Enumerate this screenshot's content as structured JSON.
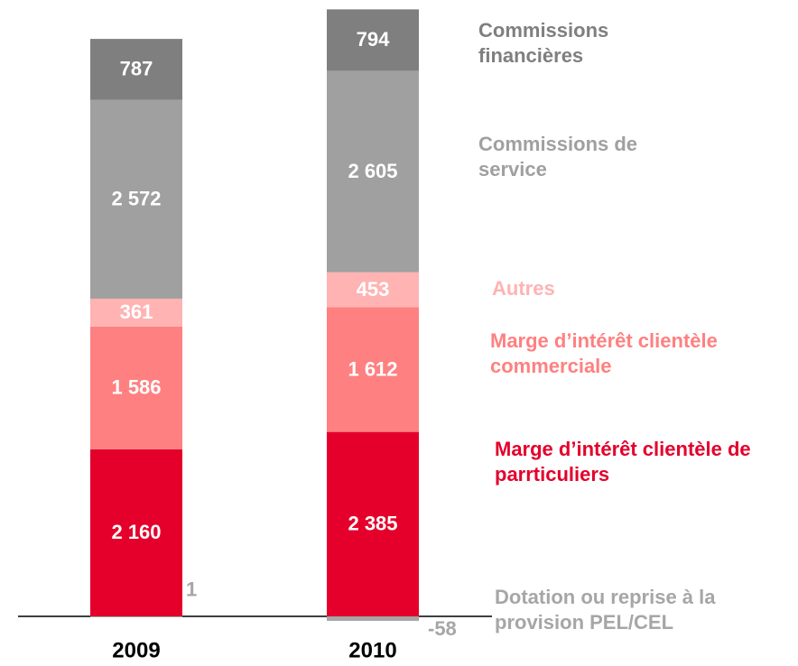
{
  "chart_data": {
    "type": "stacked_bar",
    "categories": [
      "2009",
      "2010"
    ],
    "ylim": [
      -630,
      7970
    ],
    "series": [
      {
        "name": "Dotation ou reprise à la provision PEL/CEL",
        "color": "#a6a6a6",
        "values": [
          1,
          -58
        ]
      },
      {
        "name": "Marge d’intérêt clientèle de parrticuliers",
        "color": "#e4002b",
        "values": [
          2160,
          2385
        ],
        "value_labels": [
          "2 160",
          "2 385"
        ]
      },
      {
        "name": "Marge d’intérêt clientèle commerciale",
        "color": "#ff8080",
        "values": [
          1586,
          1612
        ],
        "value_labels": [
          "1 586",
          "1 612"
        ]
      },
      {
        "name": "Autres",
        "color": "#ffb3b3",
        "values": [
          361,
          453
        ]
      },
      {
        "name": "Commissions de service",
        "color": "#a0a0a0",
        "values": [
          2572,
          2605
        ],
        "value_labels": [
          "2 572",
          "2 605"
        ]
      },
      {
        "name": "Commissions financières",
        "color": "#7f7f7f",
        "values": [
          787,
          794
        ]
      }
    ]
  }
}
